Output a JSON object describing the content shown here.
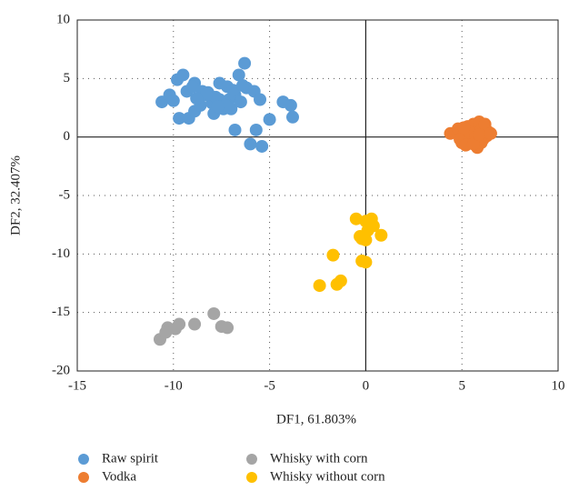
{
  "chart_data": {
    "type": "scatter",
    "xlabel": "DF1, 61.803%",
    "ylabel": "DF2, 32.407%",
    "xlim": [
      -15,
      10
    ],
    "ylim": [
      -20,
      10
    ],
    "xticks": [
      -15,
      -10,
      -5,
      0,
      5,
      10
    ],
    "yticks": [
      -20,
      -15,
      -10,
      -5,
      0,
      5,
      10
    ],
    "grid": true,
    "legend": "bottom",
    "series": [
      {
        "name": "Raw spirit",
        "color": "#5b9bd5",
        "x": [
          -10.6,
          -10.2,
          -10.0,
          -9.8,
          -9.5,
          -9.7,
          -9.2,
          -8.9,
          -8.9,
          -8.5,
          -8.2,
          -7.9,
          -7.6,
          -7.2,
          -7.1,
          -6.8,
          -6.6,
          -6.3,
          -6.2,
          -5.8,
          -5.5,
          -5.0,
          -6.0,
          -5.4,
          -5.7,
          -6.8,
          -4.3,
          -3.9,
          -3.8,
          -7.4,
          -7.6,
          -8.0,
          -7.0,
          -6.5,
          -9.3,
          -8.6,
          -7.8,
          -6.9,
          -7.3,
          -8.3,
          -9.0,
          -6.4,
          -7.7,
          -8.8
        ],
        "y": [
          3.0,
          3.6,
          3.1,
          4.9,
          5.3,
          1.6,
          1.6,
          4.6,
          2.2,
          3.9,
          3.8,
          2.0,
          4.6,
          4.3,
          3.2,
          3.6,
          5.3,
          6.3,
          4.2,
          3.9,
          3.2,
          1.5,
          -0.6,
          -0.8,
          0.6,
          0.6,
          3.0,
          2.7,
          1.7,
          2.4,
          3.2,
          2.9,
          2.4,
          3.0,
          3.9,
          2.7,
          3.4,
          4.0,
          2.7,
          3.6,
          4.3,
          4.4,
          2.6,
          3.3
        ]
      },
      {
        "name": "Vodka",
        "color": "#ed7d31",
        "x": [
          4.4,
          4.8,
          5.0,
          5.1,
          5.3,
          5.5,
          5.6,
          5.7,
          5.8,
          5.9,
          6.0,
          6.1,
          6.2,
          6.3,
          6.4,
          4.9,
          5.2,
          5.4,
          5.7,
          6.0,
          6.2,
          5.6,
          5.1,
          5.9,
          6.5
        ],
        "y": [
          0.3,
          0.7,
          -0.5,
          0.2,
          0.9,
          -0.3,
          1.1,
          0.4,
          -0.9,
          1.3,
          0.6,
          -0.2,
          0.9,
          0.1,
          0.4,
          -0.2,
          -0.7,
          0.4,
          0.0,
          -0.5,
          1.1,
          -0.6,
          0.8,
          0.2,
          0.3
        ]
      },
      {
        "name": "Whisky with corn",
        "color": "#a5a5a5",
        "x": [
          -10.7,
          -10.3,
          -10.4,
          -9.9,
          -9.7,
          -8.9,
          -7.9,
          -7.5,
          -7.2
        ],
        "y": [
          -17.3,
          -16.3,
          -16.7,
          -16.4,
          -16.0,
          -16.0,
          -15.1,
          -16.2,
          -16.3
        ]
      },
      {
        "name": "Whisky without corn",
        "color": "#ffc000",
        "x": [
          -0.5,
          0.0,
          0.3,
          0.4,
          0.1,
          -0.3,
          0.0,
          0.8,
          -0.2,
          -1.7,
          -0.2,
          0.0,
          -1.3,
          -1.5,
          -2.4
        ],
        "y": [
          -7.0,
          -7.2,
          -7.0,
          -7.6,
          -8.0,
          -8.5,
          -8.8,
          -8.4,
          -8.7,
          -10.1,
          -10.6,
          -10.7,
          -12.3,
          -12.6,
          -12.7
        ]
      }
    ]
  }
}
